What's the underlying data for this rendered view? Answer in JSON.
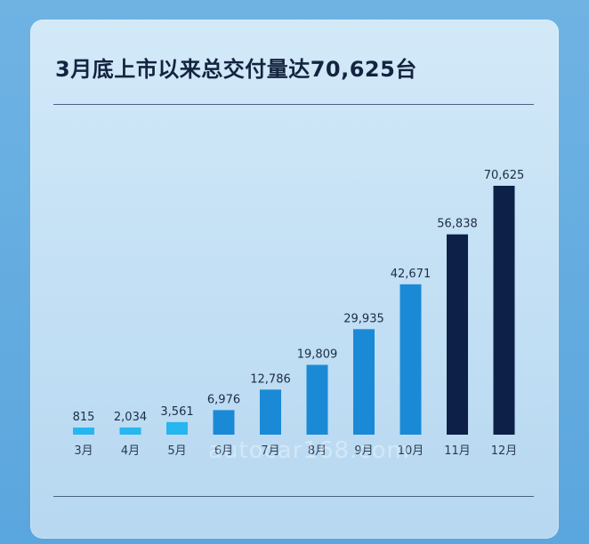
{
  "chart_data": {
    "type": "bar",
    "title": "3月底上市以来总交付量达70,625台",
    "categories": [
      "3月",
      "4月",
      "5月",
      "6月",
      "7月",
      "8月",
      "9月",
      "10月",
      "11月",
      "12月"
    ],
    "values": [
      815,
      2034,
      3561,
      6976,
      12786,
      19809,
      29935,
      42671,
      56838,
      70625
    ],
    "value_labels": [
      "815",
      "2,034",
      "3,561",
      "6,976",
      "12,786",
      "19,809",
      "29,935",
      "42,671",
      "56,838",
      "70,625"
    ],
    "ylim": [
      0,
      70625
    ],
    "grid": false,
    "colors": [
      "#26b6f0",
      "#26b6f0",
      "#26b6f0",
      "#1a8ad6",
      "#1a8ad6",
      "#1a8ad6",
      "#1a8ad6",
      "#1a8ad6",
      "#0d2148",
      "#0d2148"
    ]
  },
  "watermark": "autocar168.com"
}
